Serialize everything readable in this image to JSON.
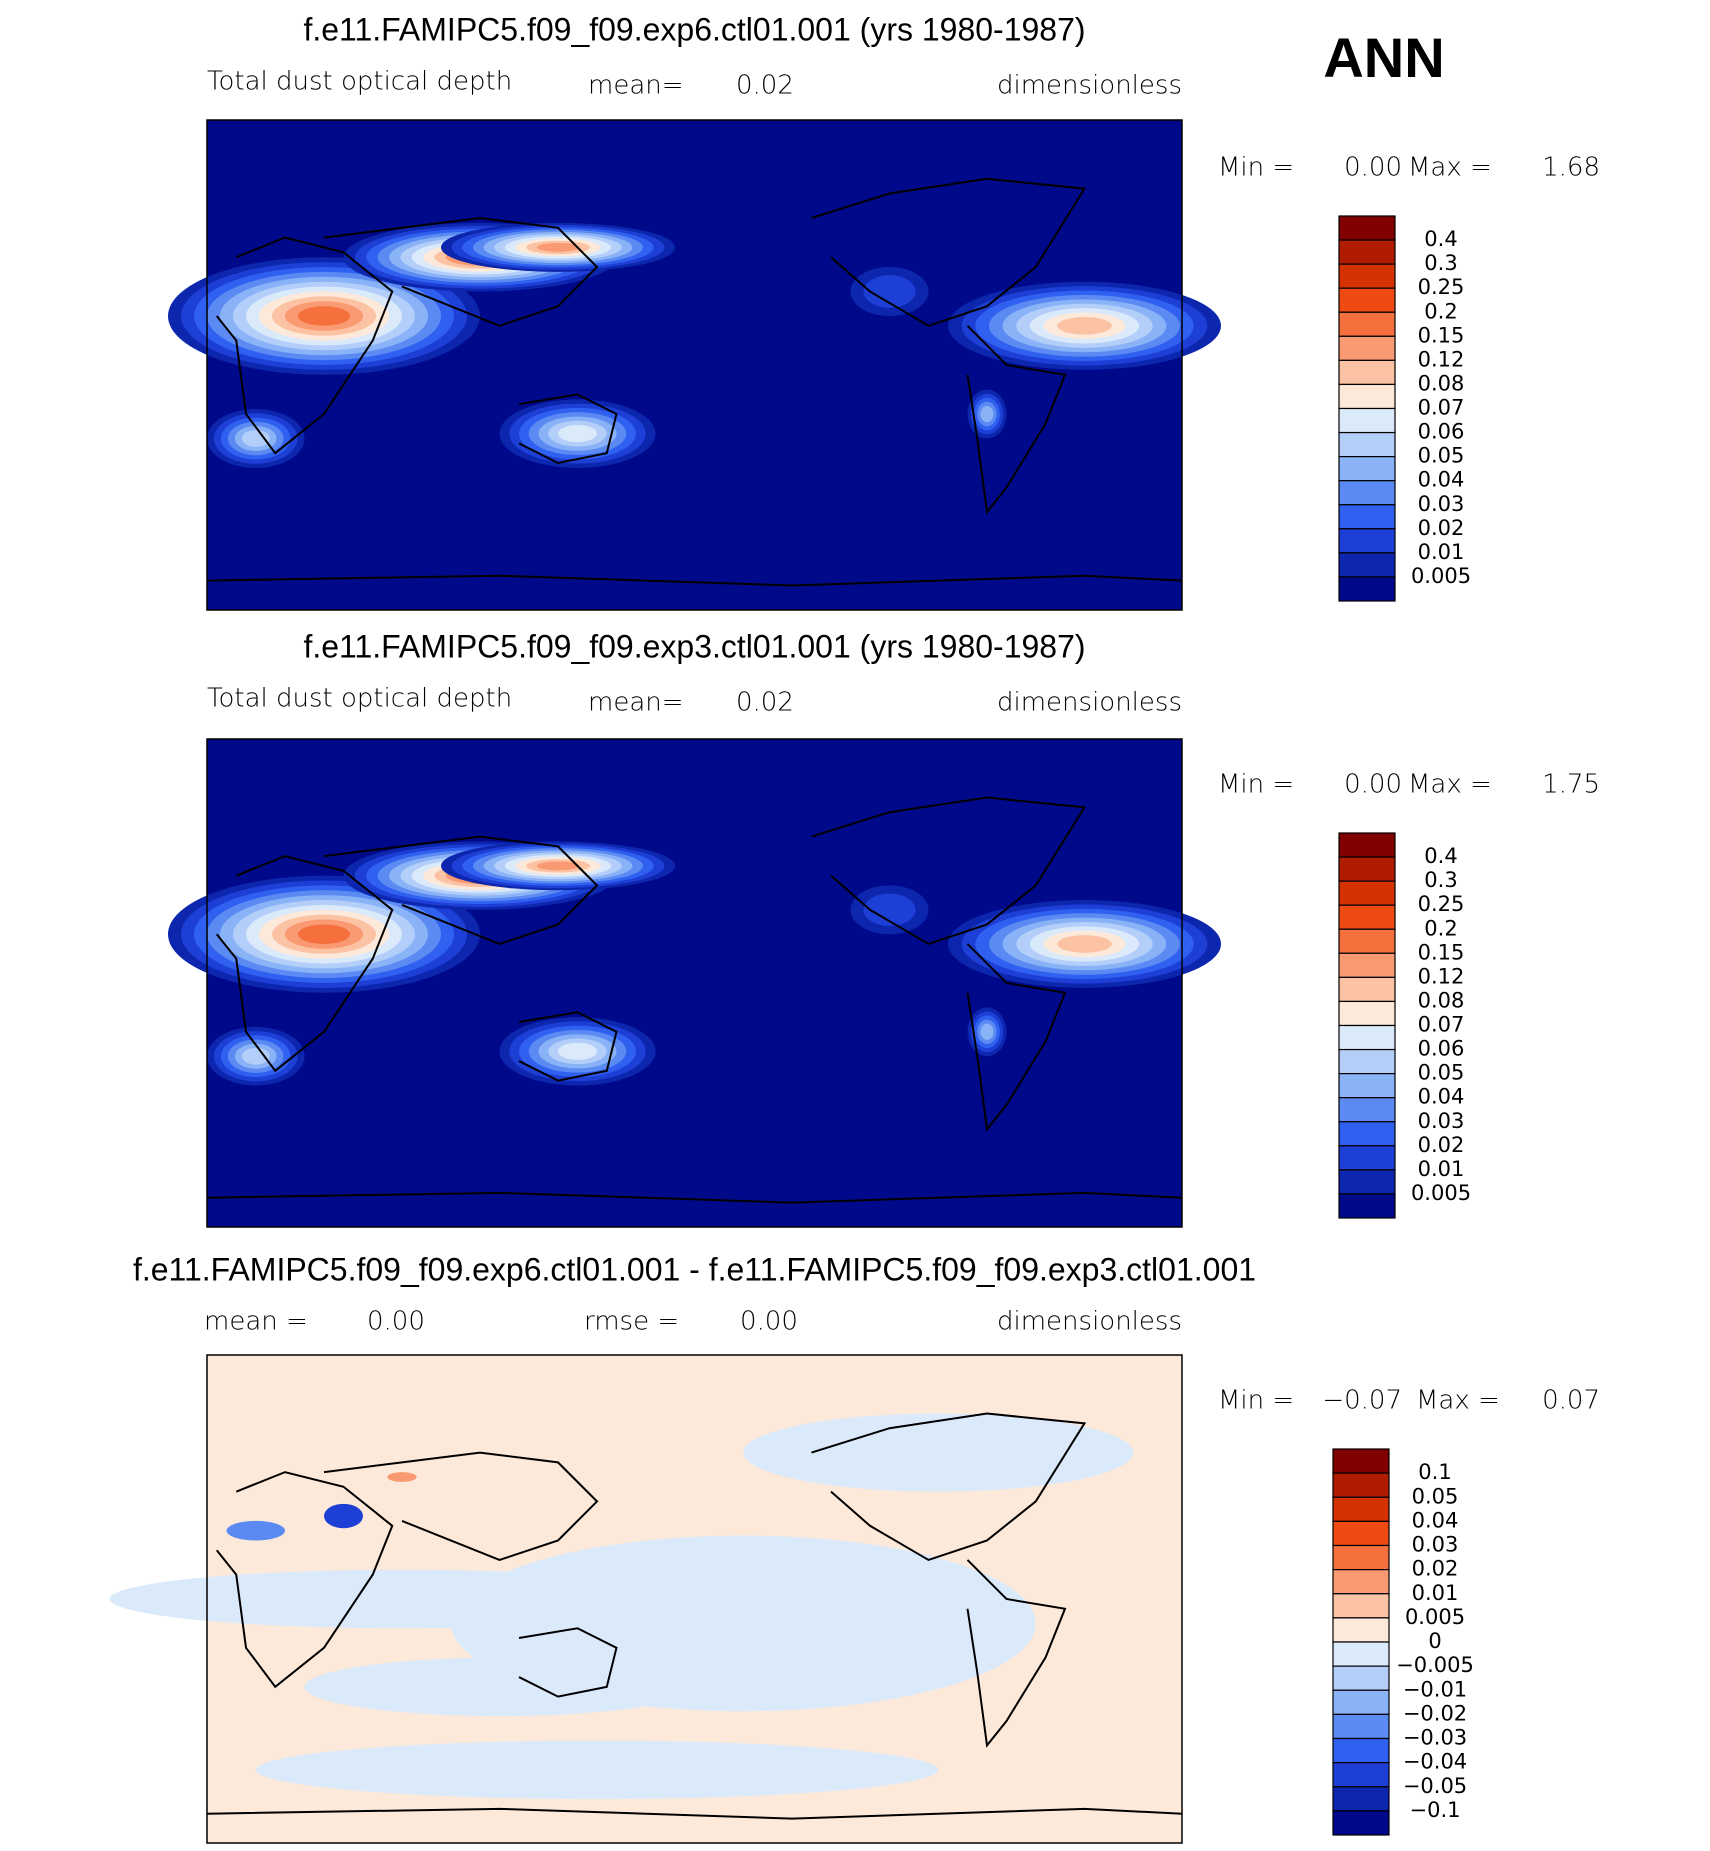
{
  "label": "ANN",
  "panels": [
    {
      "title": "f.e11.FAMIPC5.f09_f09.exp6.ctl01.001 (yrs 1980-1987)",
      "left": "Total dust optical depth",
      "mean_label": "mean=",
      "mean": "0.02",
      "units": "dimensionless",
      "min_label": "Min =",
      "min": "0.00",
      "max_label": "Max =",
      "max": "1.68",
      "levels": [
        "0.4",
        "0.3",
        "0.25",
        "0.2",
        "0.15",
        "0.12",
        "0.08",
        "0.07",
        "0.06",
        "0.05",
        "0.04",
        "0.03",
        "0.02",
        "0.01",
        "0.005"
      ],
      "colors": [
        "#800000",
        "#b01c00",
        "#d43200",
        "#ee4a12",
        "#f6703e",
        "#f99a72",
        "#fcc2a4",
        "#fde9d9",
        "#dbeafb",
        "#b3cff9",
        "#8ab2f6",
        "#5a8af2",
        "#2f60ef",
        "#1d3fd6",
        "#0d26ae",
        "#00098a"
      ]
    },
    {
      "title": "f.e11.FAMIPC5.f09_f09.exp3.ctl01.001 (yrs 1980-1987)",
      "left": "Total dust optical depth",
      "mean_label": "mean=",
      "mean": "0.02",
      "units": "dimensionless",
      "min_label": "Min =",
      "min": "0.00",
      "max_label": "Max =",
      "max": "1.75",
      "levels": [
        "0.4",
        "0.3",
        "0.25",
        "0.2",
        "0.15",
        "0.12",
        "0.08",
        "0.07",
        "0.06",
        "0.05",
        "0.04",
        "0.03",
        "0.02",
        "0.01",
        "0.005"
      ],
      "colors": [
        "#800000",
        "#b01c00",
        "#d43200",
        "#ee4a12",
        "#f6703e",
        "#f99a72",
        "#fcc2a4",
        "#fde9d9",
        "#dbeafb",
        "#b3cff9",
        "#8ab2f6",
        "#5a8af2",
        "#2f60ef",
        "#1d3fd6",
        "#0d26ae",
        "#00098a"
      ]
    },
    {
      "title": "f.e11.FAMIPC5.f09_f09.exp6.ctl01.001 - f.e11.FAMIPC5.f09_f09.exp3.ctl01.001",
      "mean_label": "mean =",
      "mean": "0.00",
      "rmse_label": "rmse =",
      "rmse": "0.00",
      "units": "dimensionless",
      "min_label": "Min =",
      "min": "−0.07",
      "max_label": "Max =",
      "max": "0.07",
      "levels": [
        "0.1",
        "0.05",
        "0.04",
        "0.03",
        "0.02",
        "0.01",
        "0.005",
        "0",
        "−0.005",
        "−0.01",
        "−0.02",
        "−0.03",
        "−0.04",
        "−0.05",
        "−0.1"
      ],
      "colors": [
        "#800000",
        "#b01c00",
        "#d43200",
        "#ee4a12",
        "#f6703e",
        "#f99a72",
        "#fcc2a4",
        "#fde9d9",
        "#dbeafb",
        "#b3cff9",
        "#8ab2f6",
        "#5a8af2",
        "#2f60ef",
        "#1d3fd6",
        "#0d26ae",
        "#00098a"
      ]
    }
  ]
}
